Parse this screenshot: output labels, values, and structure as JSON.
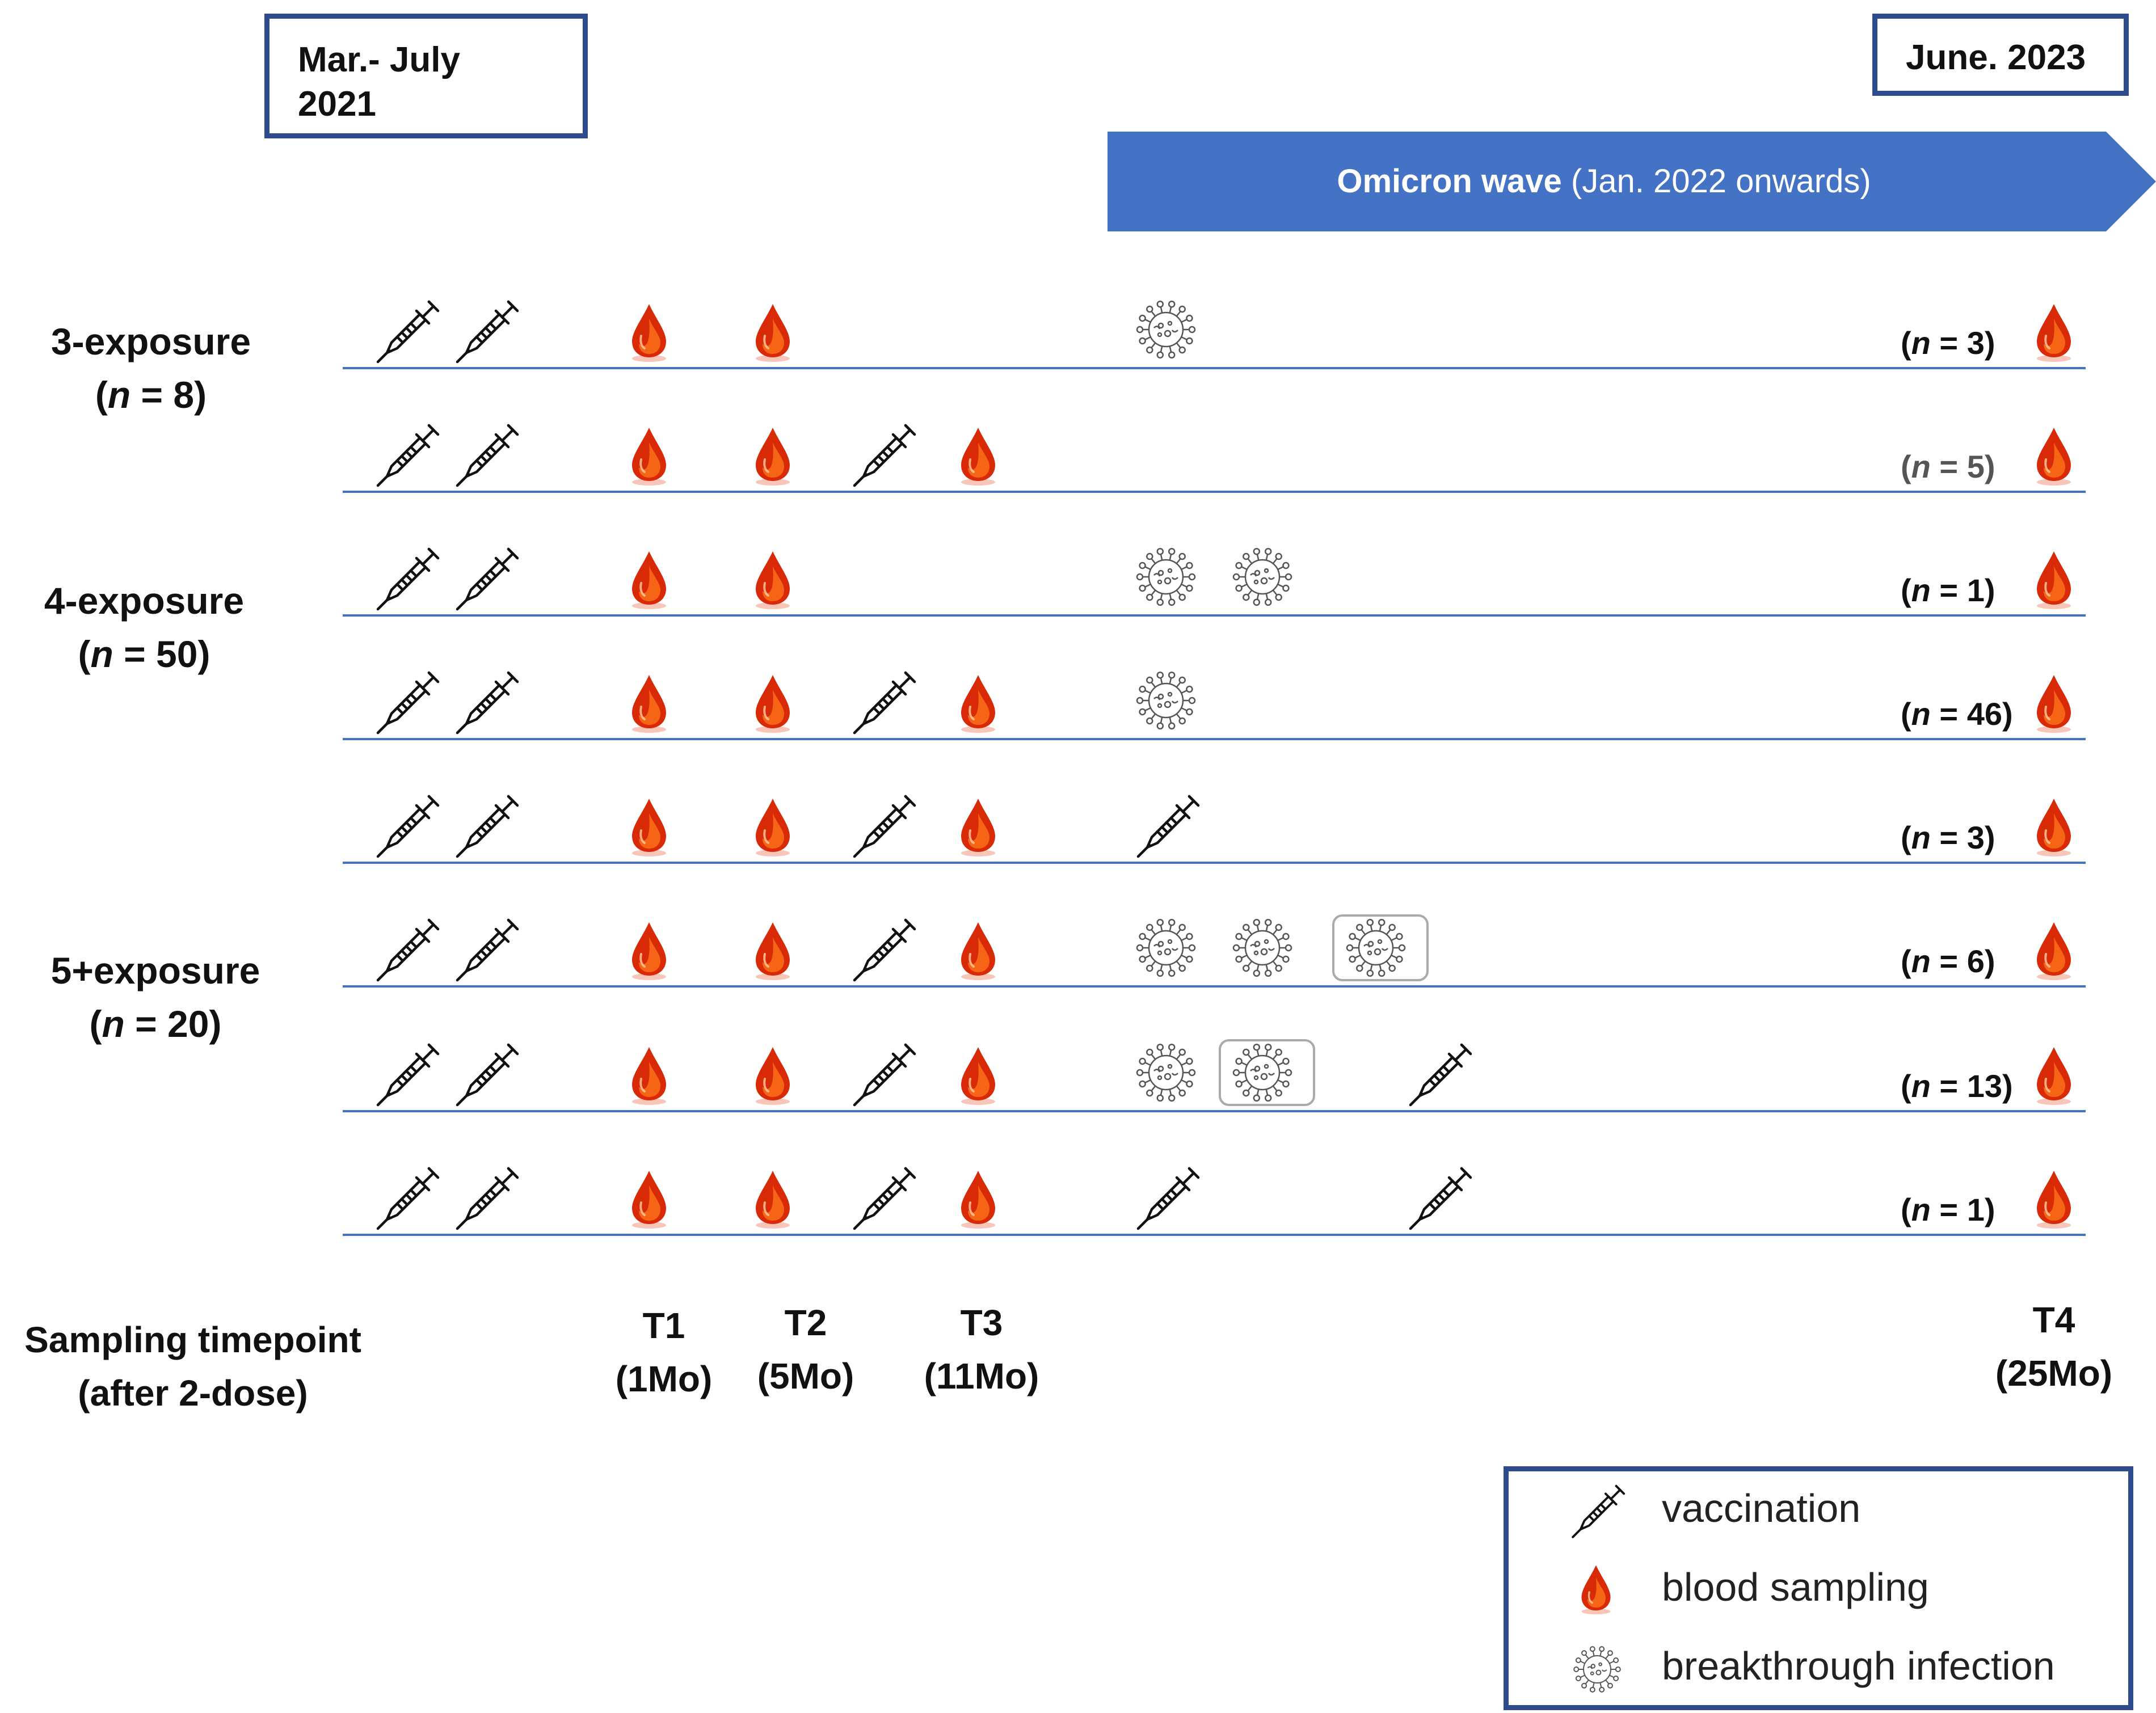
{
  "header": {
    "start_date": [
      "Mar.- July",
      "2021"
    ],
    "end_date": "June. 2023",
    "wave_bold": "Omicron wave",
    "wave_rest": " (Jan. 2022 onwards)",
    "wave_color": "#4472c4"
  },
  "groups": [
    {
      "label": [
        "3-exposure",
        "(n = 8)"
      ]
    },
    {
      "label": [
        "4-exposure",
        "(n = 50)"
      ]
    },
    {
      "label": [
        "5+exposure",
        "(n = 20)"
      ]
    }
  ],
  "rows": [
    {
      "n": "3",
      "events": [
        "vaccination",
        "vaccination",
        "blood",
        "blood",
        "infection"
      ]
    },
    {
      "n": "5",
      "events": [
        "vaccination",
        "vaccination",
        "blood",
        "blood",
        "vaccination",
        "blood"
      ]
    },
    {
      "n": "1",
      "events": [
        "vaccination",
        "vaccination",
        "blood",
        "blood",
        "infection",
        "infection"
      ]
    },
    {
      "n": "46",
      "events": [
        "vaccination",
        "vaccination",
        "blood",
        "blood",
        "vaccination",
        "blood",
        "infection"
      ]
    },
    {
      "n": "3",
      "events": [
        "vaccination",
        "vaccination",
        "blood",
        "blood",
        "vaccination",
        "blood",
        "vaccination"
      ]
    },
    {
      "n": "6",
      "events": [
        "vaccination",
        "vaccination",
        "blood",
        "blood",
        "vaccination",
        "blood",
        "infection",
        "infection",
        "infection (bracketed)"
      ]
    },
    {
      "n": "13",
      "events": [
        "vaccination",
        "vaccination",
        "blood",
        "blood",
        "vaccination",
        "blood",
        "infection",
        "infection (bracketed)",
        "vaccination"
      ]
    },
    {
      "n": "1",
      "events": [
        "vaccination",
        "vaccination",
        "blood",
        "blood",
        "vaccination",
        "blood",
        "vaccination",
        "vaccination"
      ]
    }
  ],
  "sampling": {
    "label": [
      "Sampling timepoint",
      "(after 2-dose)"
    ],
    "timepoints": [
      {
        "name": "T1",
        "time": "(1Mo)"
      },
      {
        "name": "T2",
        "time": "(5Mo)"
      },
      {
        "name": "T3",
        "time": "(11Mo)"
      },
      {
        "name": "T4",
        "time": "(25Mo)"
      }
    ]
  },
  "legend": {
    "vaccination": "vaccination",
    "blood": "blood sampling",
    "infection": "breakthrough infection"
  },
  "colors": {
    "box_border": "#2e4c8c",
    "line": "#4472c4",
    "blood": "#d01a00"
  }
}
